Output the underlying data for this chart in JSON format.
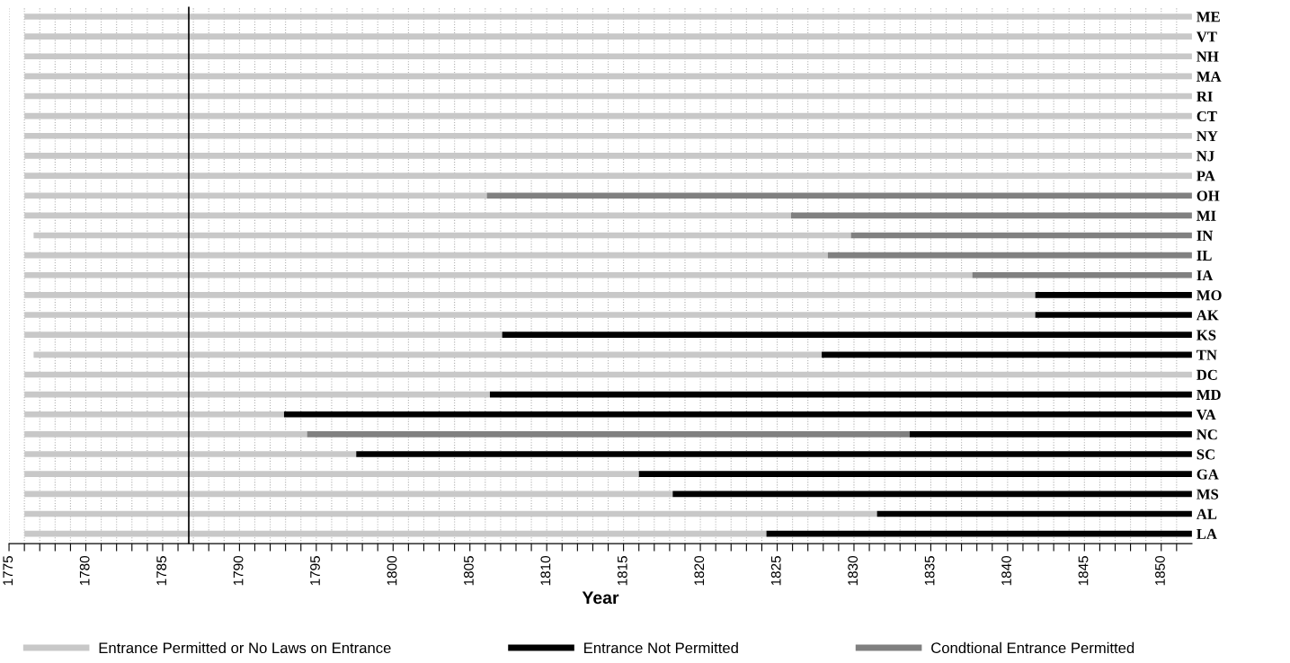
{
  "chart_data": {
    "type": "bar",
    "orientation": "horizontal",
    "xlabel": "Year",
    "categories": [
      "ME",
      "VT",
      "NH",
      "MA",
      "RI",
      "CT",
      "NY",
      "NJ",
      "PA",
      "OH",
      "MI",
      "IN",
      "IL",
      "IA",
      "MO",
      "AK",
      "KS",
      "TN",
      "DC",
      "MD",
      "VA",
      "NC",
      "SC",
      "GA",
      "MS",
      "AL",
      "LA"
    ],
    "series": [
      {
        "name": "Entrance Permitted or No Laws on Entrance",
        "color": "#c8c8c8",
        "base": [
          1776,
          1776,
          1776,
          1776,
          1776,
          1776,
          1776,
          1776,
          1776,
          1776,
          1776,
          1776.6,
          1776,
          1776,
          1776,
          1776,
          1776,
          1776.6,
          1776,
          1776,
          1776,
          1776,
          1776,
          1776,
          1776,
          1776,
          1776
        ],
        "values": [
          76,
          76,
          76,
          76,
          76,
          76,
          76,
          76,
          76,
          30.1,
          49.9,
          53.2,
          52.3,
          61.7,
          65.8,
          65.8,
          31.1,
          51.3,
          76,
          30.3,
          16.9,
          18.4,
          21.6,
          40,
          42.2,
          55.5,
          48.3
        ]
      },
      {
        "name": "Entrance Not Permitted",
        "color": "#000000",
        "base": [
          null,
          null,
          null,
          null,
          null,
          null,
          null,
          null,
          null,
          null,
          null,
          null,
          null,
          null,
          1841.8,
          1841.8,
          1807.1,
          1827.9,
          null,
          1806.3,
          1792.9,
          1833.6,
          1797.6,
          1816,
          1818.2,
          1831.5,
          1824.3
        ],
        "values": [
          null,
          null,
          null,
          null,
          null,
          null,
          null,
          null,
          null,
          null,
          null,
          null,
          null,
          null,
          10.2,
          10.2,
          44.9,
          24.1,
          null,
          45.7,
          59.1,
          18.4,
          54.4,
          36,
          33.8,
          20.5,
          27.7
        ]
      },
      {
        "name": "Condtional Entrance Permitted",
        "color": "#808080",
        "base": [
          null,
          null,
          null,
          null,
          null,
          null,
          null,
          null,
          null,
          1806.1,
          1825.9,
          1829.8,
          1828.3,
          1837.7,
          null,
          null,
          null,
          null,
          null,
          null,
          null,
          1794.4,
          null,
          null,
          null,
          null,
          null
        ],
        "values": [
          null,
          null,
          null,
          null,
          null,
          null,
          null,
          null,
          null,
          45.9,
          26.1,
          22.2,
          23.7,
          14.3,
          null,
          null,
          null,
          null,
          null,
          null,
          null,
          39.2,
          null,
          null,
          null,
          null,
          null
        ]
      }
    ],
    "xlim": [
      1775,
      1852
    ],
    "xticks": [
      1775,
      {
        "value": 1776,
        "label": null
      },
      {
        "value": 1777,
        "label": null
      },
      {
        "value": 1778,
        "label": null
      },
      {
        "value": 1779,
        "label": null
      },
      1780,
      {
        "value": 1781,
        "label": null
      },
      {
        "value": 1782,
        "label": null
      },
      {
        "value": 1783,
        "label": null
      },
      {
        "value": 1784,
        "label": null
      },
      1785,
      {
        "value": 1786,
        "label": null
      },
      {
        "value": 1787,
        "label": null
      },
      {
        "value": 1788,
        "label": null
      },
      {
        "value": 1789,
        "label": null
      },
      1790,
      {
        "value": 1791,
        "label": null
      },
      {
        "value": 1792,
        "label": null
      },
      {
        "value": 1793,
        "label": null
      },
      {
        "value": 1794,
        "label": null
      },
      1795,
      {
        "value": 1796,
        "label": null
      },
      {
        "value": 1797,
        "label": null
      },
      {
        "value": 1798,
        "label": null
      },
      {
        "value": 1799,
        "label": null
      },
      1800,
      {
        "value": 1801,
        "label": null
      },
      {
        "value": 1802,
        "label": null
      },
      {
        "value": 1803,
        "label": null
      },
      {
        "value": 1804,
        "label": null
      },
      1805,
      {
        "value": 1806,
        "label": null
      },
      {
        "value": 1807,
        "label": null
      },
      {
        "value": 1808,
        "label": null
      },
      {
        "value": 1809,
        "label": null
      },
      1810,
      {
        "value": 1811,
        "label": null
      },
      {
        "value": 1812,
        "label": null
      },
      {
        "value": 1813,
        "label": null
      },
      {
        "value": 1814,
        "label": null
      },
      1815,
      {
        "value": 1816,
        "label": null
      },
      {
        "value": 1817,
        "label": null
      },
      {
        "value": 1818,
        "label": null
      },
      {
        "value": 1819,
        "label": null
      },
      1820,
      {
        "value": 1821,
        "label": null
      },
      {
        "value": 1822,
        "label": null
      },
      {
        "value": 1823,
        "label": null
      },
      {
        "value": 1824,
        "label": null
      },
      1825,
      {
        "value": 1826,
        "label": null
      },
      {
        "value": 1827,
        "label": null
      },
      {
        "value": 1828,
        "label": null
      },
      {
        "value": 1829,
        "label": null
      },
      1830,
      {
        "value": 1831,
        "label": null
      },
      {
        "value": 1832,
        "label": null
      },
      {
        "value": 1833,
        "label": null
      },
      {
        "value": 1834,
        "label": null
      },
      1835,
      {
        "value": 1836,
        "label": null
      },
      {
        "value": 1837,
        "label": null
      },
      {
        "value": 1838,
        "label": null
      },
      {
        "value": 1839,
        "label": null
      },
      1840,
      {
        "value": 1841,
        "label": null
      },
      {
        "value": 1842,
        "label": null
      },
      {
        "value": 1843,
        "label": null
      },
      {
        "value": 1844,
        "label": null
      },
      1845,
      {
        "value": 1846,
        "label": null
      },
      {
        "value": 1847,
        "label": null
      },
      {
        "value": 1848,
        "label": null
      },
      {
        "value": 1849,
        "label": null
      },
      1850,
      {
        "value": 1851,
        "label": null
      }
    ],
    "ref_lines": [
      {
        "axis": "x",
        "value": 1786.7,
        "color": "#000000",
        "line_style": "solid"
      }
    ],
    "grid": "x",
    "legend": "bottom"
  }
}
